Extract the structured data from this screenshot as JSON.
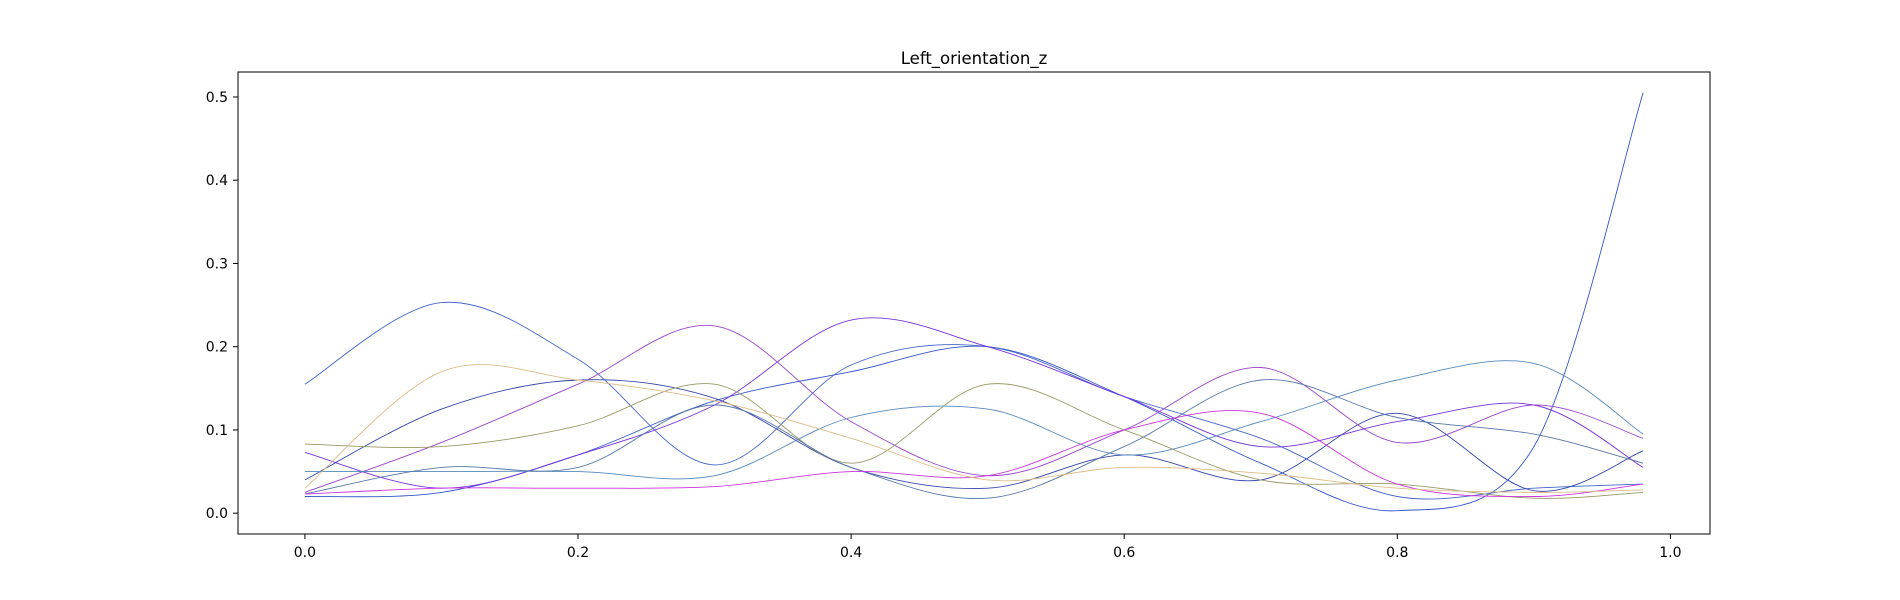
{
  "chart_data": {
    "type": "line",
    "title": "Left_orientation_z",
    "xlabel": "",
    "ylabel": "",
    "xlim": [
      -0.049,
      1.029
    ],
    "ylim": [
      -0.025,
      0.53
    ],
    "grid": false,
    "xticks": [
      {
        "value": 0.0,
        "label": "0.0"
      },
      {
        "value": 0.2,
        "label": "0.2"
      },
      {
        "value": 0.4,
        "label": "0.4"
      },
      {
        "value": 0.6,
        "label": "0.6"
      },
      {
        "value": 0.8,
        "label": "0.8"
      },
      {
        "value": 1.0,
        "label": "1.0"
      }
    ],
    "yticks": [
      {
        "value": 0.0,
        "label": "0.0"
      },
      {
        "value": 0.1,
        "label": "0.1"
      },
      {
        "value": 0.2,
        "label": "0.2"
      },
      {
        "value": 0.3,
        "label": "0.3"
      },
      {
        "value": 0.4,
        "label": "0.4"
      },
      {
        "value": 0.5,
        "label": "0.5"
      }
    ],
    "x": [
      0.0,
      0.1,
      0.2,
      0.3,
      0.4,
      0.5,
      0.6,
      0.7,
      0.8,
      0.9,
      0.98
    ],
    "series": [
      {
        "color": "#3355cc",
        "values": [
          0.02,
          0.025,
          0.07,
          0.135,
          0.17,
          0.2,
          0.14,
          0.06,
          0.003,
          0.08,
          0.505
        ]
      },
      {
        "color": "#4466cc",
        "values": [
          0.155,
          0.253,
          0.185,
          0.058,
          0.178,
          0.2,
          0.14,
          0.09,
          0.02,
          0.03,
          0.035
        ]
      },
      {
        "color": "#7733dd",
        "values": [
          0.073,
          0.03,
          0.07,
          0.13,
          0.232,
          0.2,
          0.14,
          0.08,
          0.11,
          0.13,
          0.055
        ]
      },
      {
        "color": "#3344aa",
        "values": [
          0.04,
          0.125,
          0.16,
          0.138,
          0.055,
          0.03,
          0.07,
          0.04,
          0.12,
          0.027,
          0.075
        ]
      },
      {
        "color": "#9944cc",
        "values": [
          0.025,
          0.085,
          0.155,
          0.225,
          0.11,
          0.045,
          0.1,
          0.175,
          0.085,
          0.13,
          0.09
        ]
      },
      {
        "color": "#5588bb",
        "values": [
          0.05,
          0.05,
          0.05,
          0.045,
          0.115,
          0.125,
          0.07,
          0.11,
          0.16,
          0.18,
          0.095
        ]
      },
      {
        "color": "#999966",
        "values": [
          0.083,
          0.08,
          0.105,
          0.155,
          0.06,
          0.155,
          0.1,
          0.04,
          0.035,
          0.018,
          0.025
        ]
      },
      {
        "color": "#5577aa",
        "values": [
          0.023,
          0.055,
          0.055,
          0.13,
          0.055,
          0.018,
          0.08,
          0.16,
          0.115,
          0.095,
          0.06
        ]
      },
      {
        "color": "#cc33dd",
        "values": [
          0.023,
          0.03,
          0.03,
          0.032,
          0.05,
          0.045,
          0.1,
          0.12,
          0.035,
          0.02,
          0.035
        ]
      },
      {
        "color": "#ddbb88",
        "values": [
          0.03,
          0.17,
          0.16,
          0.135,
          0.09,
          0.04,
          0.055,
          0.048,
          0.03,
          0.025,
          0.028
        ]
      }
    ]
  }
}
